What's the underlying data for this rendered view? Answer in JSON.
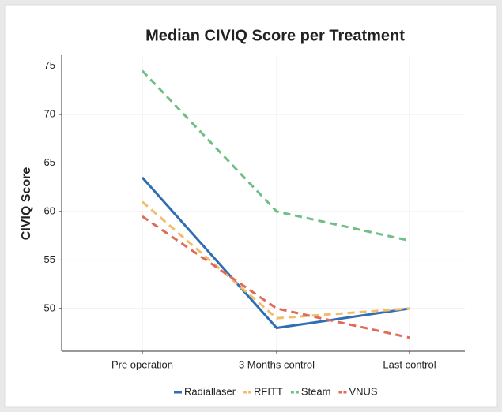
{
  "chart_data": {
    "type": "line",
    "title": "Median CIVIQ Score per Treatment",
    "y_label": "CIVIQ Score",
    "categories": [
      "Pre operation",
      "3 Months control",
      "Last control"
    ],
    "series": [
      {
        "name": "Radiallaser",
        "color": "#2f6db5",
        "dashed": false,
        "values": [
          63.5,
          48,
          50
        ]
      },
      {
        "name": "RFITT",
        "color": "#f1bd6a",
        "dashed": true,
        "values": [
          61,
          49,
          50
        ]
      },
      {
        "name": "Steam",
        "color": "#6dbf85",
        "dashed": true,
        "values": [
          74.5,
          60,
          57
        ]
      },
      {
        "name": "VNUS",
        "color": "#df6b58",
        "dashed": true,
        "values": [
          59.5,
          50,
          47
        ]
      }
    ],
    "ylim": [
      45.6,
      76.1
    ],
    "yticks": [
      50,
      55,
      60,
      65,
      70,
      75
    ],
    "grid": true,
    "legend": "bottom"
  }
}
